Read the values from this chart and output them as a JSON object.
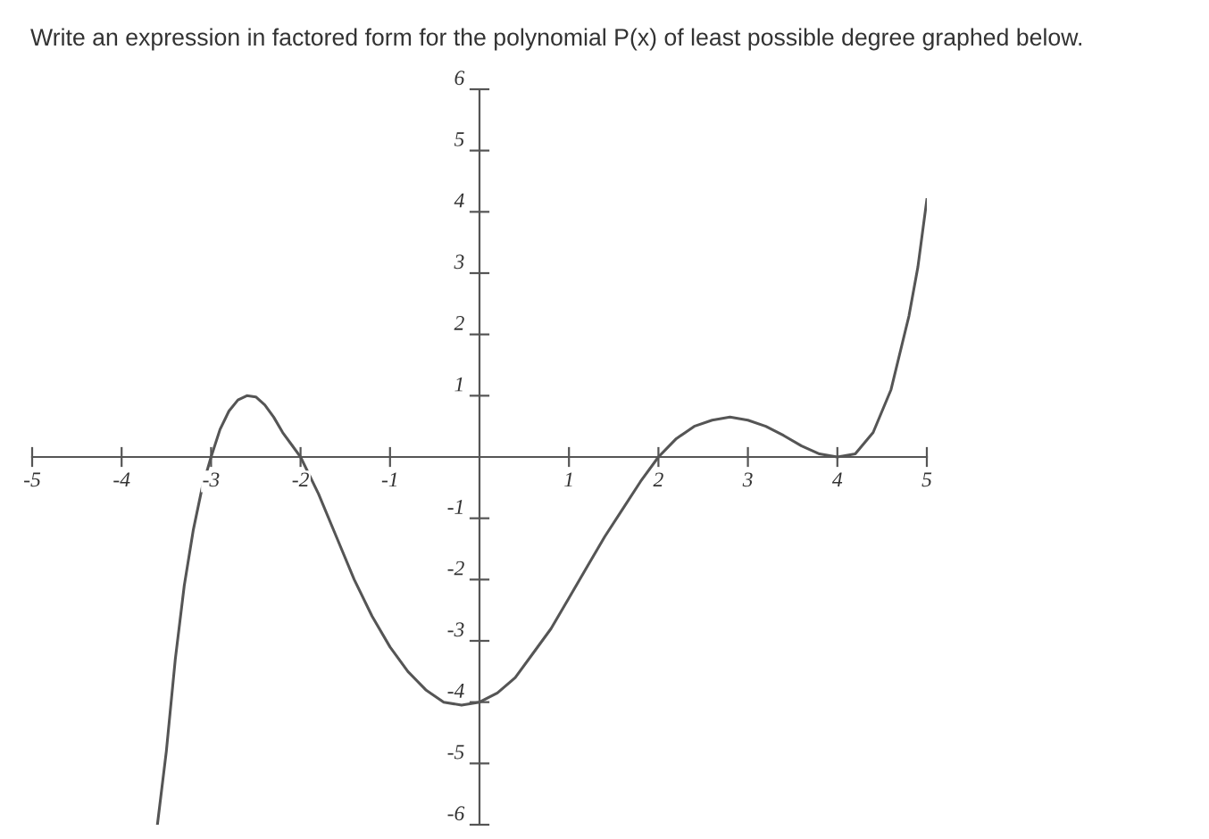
{
  "chart_data": {
    "type": "line",
    "title": "Write an expression in factored form for the polynomial P(x) of least possible degree graphed below.",
    "series": [
      {
        "color": "#555555",
        "x": [
          -3.6,
          -3.5,
          -3.4,
          -3.3,
          -3.2,
          -3.1,
          -3.0,
          -2.9,
          -2.8,
          -2.7,
          -2.6,
          -2.5,
          -2.4,
          -2.3,
          -2.2,
          -2.1,
          -2.0,
          -1.8,
          -1.6,
          -1.4,
          -1.2,
          -1.0,
          -0.8,
          -0.6,
          -0.4,
          -0.2,
          0,
          0.2,
          0.4,
          0.6,
          0.8,
          1.0,
          1.2,
          1.4,
          1.6,
          1.8,
          2.0,
          2.2,
          2.4,
          2.6,
          2.8,
          3.0,
          3.2,
          3.4,
          3.6,
          3.8,
          4.0,
          4.2,
          4.4,
          4.6,
          4.8,
          4.9,
          5.0
        ],
        "values": [
          -6.0,
          -4.8,
          -3.3,
          -2.1,
          -1.2,
          -0.5,
          0,
          0.45,
          0.75,
          0.93,
          1.0,
          0.98,
          0.85,
          0.65,
          0.4,
          0.2,
          0,
          -0.6,
          -1.3,
          -2.0,
          -2.6,
          -3.1,
          -3.5,
          -3.8,
          -4.0,
          -4.05,
          -4.0,
          -3.85,
          -3.6,
          -3.2,
          -2.8,
          -2.3,
          -1.8,
          -1.3,
          -0.85,
          -0.4,
          0,
          0.3,
          0.5,
          0.6,
          0.65,
          0.6,
          0.5,
          0.35,
          0.18,
          0.05,
          0,
          0.05,
          0.4,
          1.1,
          2.3,
          3.1,
          4.2
        ]
      }
    ],
    "xlim": [
      -5,
      5
    ],
    "ylim": [
      -6,
      6
    ],
    "xticks": [
      -5,
      -4,
      -3,
      -2,
      -1,
      1,
      2,
      3,
      4,
      5
    ],
    "yticks": [
      -6,
      -5,
      -4,
      -3,
      -2,
      -1,
      1,
      2,
      3,
      4,
      5,
      6
    ],
    "grid": false,
    "legend": false,
    "marker": "none",
    "line_style": "solid"
  }
}
